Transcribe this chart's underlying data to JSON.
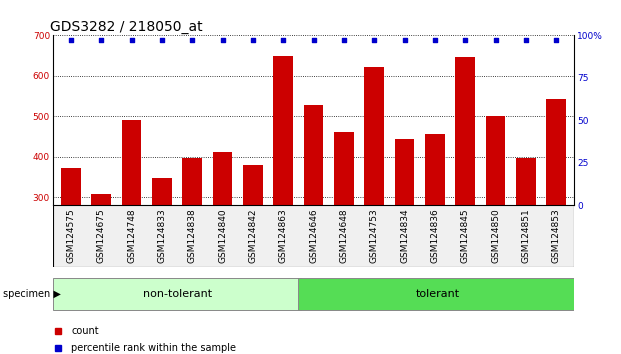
{
  "title": "GDS3282 / 218050_at",
  "categories": [
    "GSM124575",
    "GSM124675",
    "GSM124748",
    "GSM124833",
    "GSM124838",
    "GSM124840",
    "GSM124842",
    "GSM124863",
    "GSM124646",
    "GSM124648",
    "GSM124753",
    "GSM124834",
    "GSM124836",
    "GSM124845",
    "GSM124850",
    "GSM124851",
    "GSM124853"
  ],
  "bar_values": [
    372,
    308,
    490,
    348,
    397,
    413,
    380,
    648,
    527,
    462,
    622,
    443,
    456,
    647,
    500,
    397,
    543
  ],
  "bar_color": "#cc0000",
  "percentile_color": "#0000cc",
  "ymin": 280,
  "ymax": 700,
  "yticks": [
    300,
    400,
    500,
    600,
    700
  ],
  "y2min": 0,
  "y2max": 100,
  "y2ticks": [
    0,
    25,
    50,
    75,
    100
  ],
  "y2tick_labels": [
    "0",
    "25",
    "50",
    "75",
    "100%"
  ],
  "non_tolerant_count": 8,
  "group1_label": "non-tolerant",
  "group2_label": "tolerant",
  "group1_color": "#ccffcc",
  "group2_color": "#55dd55",
  "specimen_label": "specimen",
  "legend_count": "count",
  "legend_percentile": "percentile rank within the sample",
  "title_fontsize": 10,
  "tick_fontsize": 6.5,
  "axis_label_color_left": "#cc0000",
  "axis_label_color_right": "#0000cc",
  "bg_color": "#f0f0f0"
}
